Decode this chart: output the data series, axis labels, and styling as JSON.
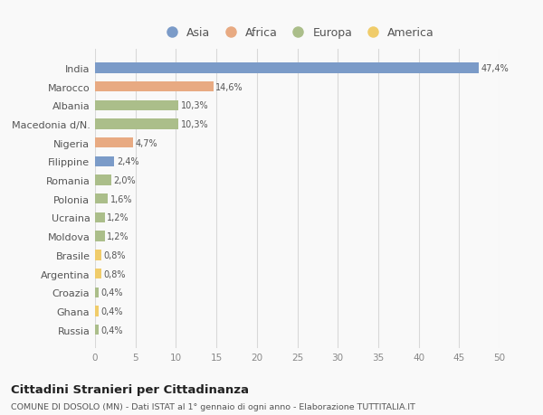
{
  "categories": [
    "India",
    "Marocco",
    "Albania",
    "Macedonia d/N.",
    "Nigeria",
    "Filippine",
    "Romania",
    "Polonia",
    "Ucraina",
    "Moldova",
    "Brasile",
    "Argentina",
    "Croazia",
    "Ghana",
    "Russia"
  ],
  "values": [
    47.4,
    14.6,
    10.3,
    10.3,
    4.7,
    2.4,
    2.0,
    1.6,
    1.2,
    1.2,
    0.8,
    0.8,
    0.4,
    0.4,
    0.4
  ],
  "labels": [
    "47,4%",
    "14,6%",
    "10,3%",
    "10,3%",
    "4,7%",
    "2,4%",
    "2,0%",
    "1,6%",
    "1,2%",
    "1,2%",
    "0,8%",
    "0,8%",
    "0,4%",
    "0,4%",
    "0,4%"
  ],
  "colors": [
    "#7b9bc8",
    "#e8aa82",
    "#abbe8a",
    "#abbe8a",
    "#e8aa82",
    "#7b9bc8",
    "#abbe8a",
    "#abbe8a",
    "#abbe8a",
    "#abbe8a",
    "#f0cc6a",
    "#f0cc6a",
    "#abbe8a",
    "#f0cc6a",
    "#abbe8a"
  ],
  "continents": [
    "Asia",
    "Africa",
    "Europa",
    "America"
  ],
  "legend_colors": [
    "#7b9bc8",
    "#e8aa82",
    "#abbe8a",
    "#f0cc6a"
  ],
  "title": "Cittadini Stranieri per Cittadinanza",
  "subtitle": "COMUNE DI DOSOLO (MN) - Dati ISTAT al 1° gennaio di ogni anno - Elaborazione TUTTITALIA.IT",
  "xlim": [
    0,
    50
  ],
  "xticks": [
    0,
    5,
    10,
    15,
    20,
    25,
    30,
    35,
    40,
    45,
    50
  ],
  "background_color": "#f9f9f9",
  "grid_color": "#d8d8d8",
  "bar_height": 0.55
}
